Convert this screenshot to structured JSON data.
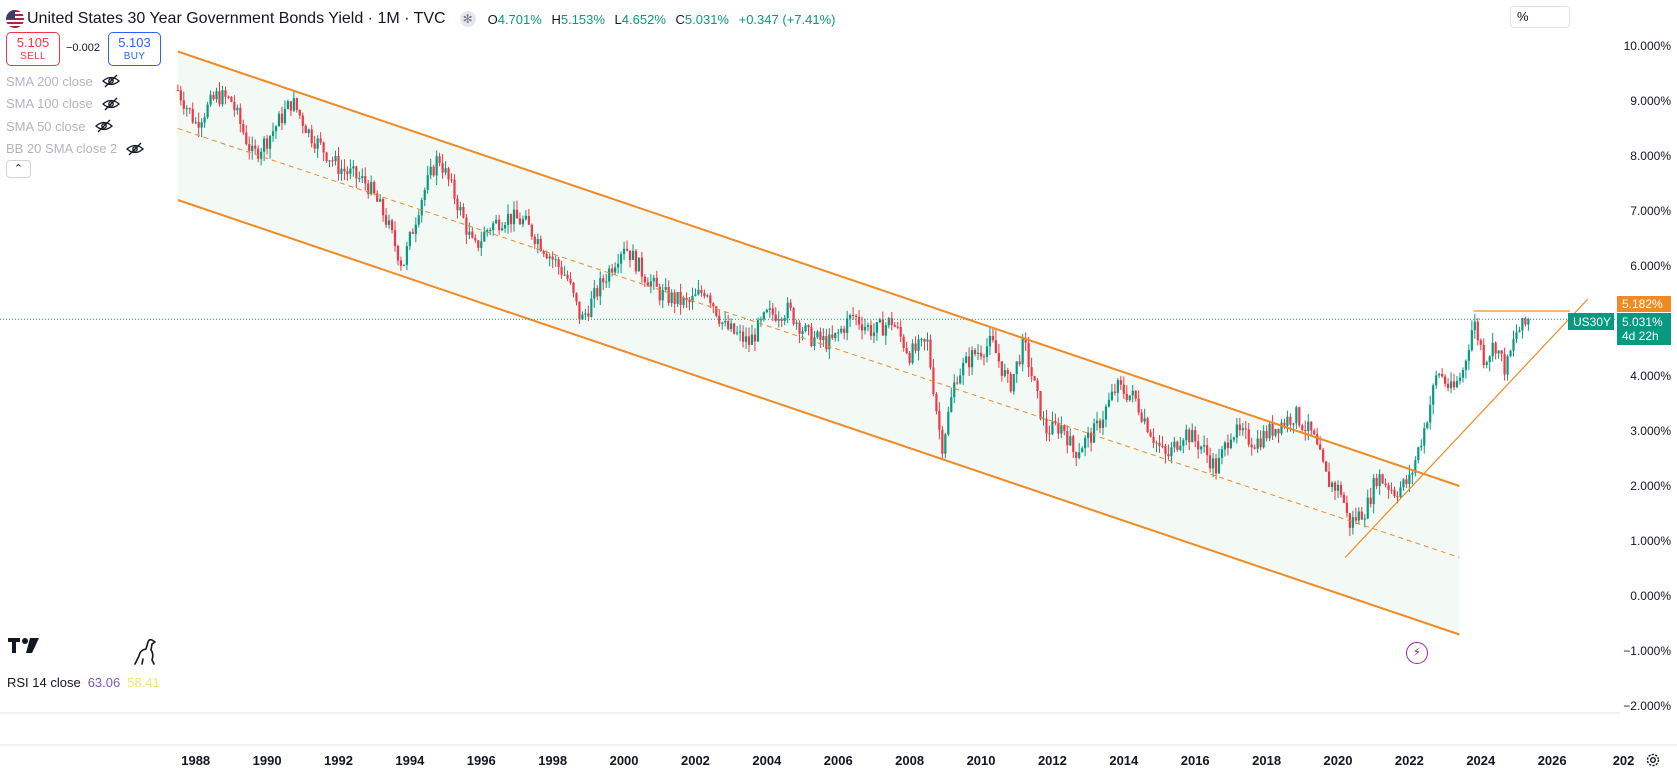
{
  "header": {
    "title": "United States 30 Year Government Bonds Yield · 1M · TVC",
    "ohlc": {
      "o_label": "O",
      "o_value": "4.701%",
      "h_label": "H",
      "h_value": "5.153%",
      "l_label": "L",
      "l_value": "4.652%",
      "c_label": "C",
      "c_value": "5.031%",
      "change": "+0.347 (+7.41%)"
    }
  },
  "trade": {
    "sell_price": "5.105",
    "sell_label": "SELL",
    "spread": "−0.002",
    "buy_price": "5.103",
    "buy_label": "BUY"
  },
  "indicators": [
    "SMA 200 close",
    "SMA 100 close",
    "SMA 50 close",
    "BB 20 SMA close 2"
  ],
  "scale_mode": "%",
  "rsi": {
    "label": "RSI 14 close",
    "value1": "63.06",
    "value2": "58.41"
  },
  "price_tags": {
    "high_level": "5.182%",
    "symbol": "US30Y",
    "last": "5.031%",
    "countdown": "4d 22h"
  },
  "colors": {
    "up": "#089981",
    "down": "#f23645",
    "channel": "#f08a24",
    "fill": "#f3faf6",
    "price_line": "#089981"
  },
  "chart_data": {
    "type": "candlestick",
    "title": "United States 30 Year Government Bonds Yield · 1M · TVC",
    "interval": "1M",
    "x_ticks": [
      "1988",
      "1990",
      "1992",
      "1994",
      "1996",
      "1998",
      "2000",
      "2002",
      "2004",
      "2006",
      "2008",
      "2010",
      "2012",
      "2014",
      "2016",
      "2018",
      "2020",
      "2022",
      "2024",
      "2026",
      "202"
    ],
    "y_ticks": [
      "10.000%",
      "9.000%",
      "8.000%",
      "7.000%",
      "6.000%",
      "5.000%",
      "4.000%",
      "3.000%",
      "2.000%",
      "1.000%",
      "0.000%",
      "−1.000%",
      "−2.000%"
    ],
    "y_unit": "%",
    "xlim": [
      1987.0,
      2027.9
    ],
    "ylim": [
      -2.0,
      10.0
    ],
    "last_value": 5.031,
    "monthly_closes": [
      {
        "x": 1987.5,
        "y": 9.2
      },
      {
        "x": 1988.0,
        "y": 8.6
      },
      {
        "x": 1988.6,
        "y": 9.1
      },
      {
        "x": 1989.0,
        "y": 9.0
      },
      {
        "x": 1989.6,
        "y": 8.0
      },
      {
        "x": 1990.0,
        "y": 8.3
      },
      {
        "x": 1990.7,
        "y": 9.0
      },
      {
        "x": 1991.2,
        "y": 8.4
      },
      {
        "x": 1992.0,
        "y": 7.8
      },
      {
        "x": 1992.8,
        "y": 7.5
      },
      {
        "x": 1993.3,
        "y": 6.9
      },
      {
        "x": 1993.8,
        "y": 6.0
      },
      {
        "x": 1994.3,
        "y": 7.2
      },
      {
        "x": 1994.8,
        "y": 8.0
      },
      {
        "x": 1995.3,
        "y": 7.2
      },
      {
        "x": 1995.8,
        "y": 6.3
      },
      {
        "x": 1996.2,
        "y": 6.7
      },
      {
        "x": 1996.7,
        "y": 6.9
      },
      {
        "x": 1997.2,
        "y": 6.8
      },
      {
        "x": 1997.8,
        "y": 6.3
      },
      {
        "x": 1998.4,
        "y": 5.8
      },
      {
        "x": 1998.8,
        "y": 5.0
      },
      {
        "x": 1999.3,
        "y": 5.6
      },
      {
        "x": 2000.0,
        "y": 6.4
      },
      {
        "x": 2000.5,
        "y": 5.9
      },
      {
        "x": 2001.0,
        "y": 5.5
      },
      {
        "x": 2001.8,
        "y": 5.3
      },
      {
        "x": 2002.3,
        "y": 5.6
      },
      {
        "x": 2002.8,
        "y": 4.9
      },
      {
        "x": 2003.5,
        "y": 4.6
      },
      {
        "x": 2004.0,
        "y": 5.1
      },
      {
        "x": 2004.6,
        "y": 5.2
      },
      {
        "x": 2005.2,
        "y": 4.7
      },
      {
        "x": 2005.8,
        "y": 4.6
      },
      {
        "x": 2006.4,
        "y": 5.1
      },
      {
        "x": 2007.0,
        "y": 4.8
      },
      {
        "x": 2007.5,
        "y": 5.0
      },
      {
        "x": 2008.0,
        "y": 4.4
      },
      {
        "x": 2008.5,
        "y": 4.6
      },
      {
        "x": 2008.9,
        "y": 2.7
      },
      {
        "x": 2009.3,
        "y": 4.0
      },
      {
        "x": 2009.8,
        "y": 4.4
      },
      {
        "x": 2010.3,
        "y": 4.6
      },
      {
        "x": 2010.8,
        "y": 3.8
      },
      {
        "x": 2011.2,
        "y": 4.6
      },
      {
        "x": 2011.8,
        "y": 3.0
      },
      {
        "x": 2012.3,
        "y": 3.1
      },
      {
        "x": 2012.6,
        "y": 2.6
      },
      {
        "x": 2013.2,
        "y": 3.0
      },
      {
        "x": 2013.8,
        "y": 3.8
      },
      {
        "x": 2014.3,
        "y": 3.6
      },
      {
        "x": 2014.9,
        "y": 2.8
      },
      {
        "x": 2015.2,
        "y": 2.5
      },
      {
        "x": 2015.7,
        "y": 3.0
      },
      {
        "x": 2016.2,
        "y": 2.7
      },
      {
        "x": 2016.6,
        "y": 2.3
      },
      {
        "x": 2017.0,
        "y": 3.0
      },
      {
        "x": 2017.7,
        "y": 2.8
      },
      {
        "x": 2018.3,
        "y": 3.1
      },
      {
        "x": 2018.8,
        "y": 3.3
      },
      {
        "x": 2019.3,
        "y": 2.9
      },
      {
        "x": 2019.7,
        "y": 2.1
      },
      {
        "x": 2020.1,
        "y": 1.9
      },
      {
        "x": 2020.3,
        "y": 1.3
      },
      {
        "x": 2020.8,
        "y": 1.6
      },
      {
        "x": 2021.1,
        "y": 2.2
      },
      {
        "x": 2021.6,
        "y": 1.9
      },
      {
        "x": 2022.0,
        "y": 2.1
      },
      {
        "x": 2022.4,
        "y": 3.0
      },
      {
        "x": 2022.8,
        "y": 4.1
      },
      {
        "x": 2023.2,
        "y": 3.7
      },
      {
        "x": 2023.5,
        "y": 4.1
      },
      {
        "x": 2023.8,
        "y": 5.0
      },
      {
        "x": 2024.1,
        "y": 4.3
      },
      {
        "x": 2024.4,
        "y": 4.6
      },
      {
        "x": 2024.7,
        "y": 4.1
      },
      {
        "x": 2025.0,
        "y": 4.8
      },
      {
        "x": 2025.4,
        "y": 5.0
      }
    ],
    "drawings": [
      {
        "name": "channel-upper",
        "points": [
          [
            1987.5,
            9.9
          ],
          [
            2023.4,
            2.0
          ]
        ]
      },
      {
        "name": "channel-mid",
        "style": "dashed",
        "points": [
          [
            1987.5,
            8.5
          ],
          [
            2023.4,
            0.7
          ]
        ]
      },
      {
        "name": "channel-lower",
        "points": [
          [
            1987.5,
            7.2
          ],
          [
            2023.4,
            -0.7
          ]
        ]
      },
      {
        "name": "support-trendline",
        "points": [
          [
            2020.2,
            0.7
          ],
          [
            2027.0,
            5.4
          ]
        ]
      },
      {
        "name": "horizontal-resistance",
        "points": [
          [
            2023.8,
            5.182
          ],
          [
            2026.5,
            5.182
          ]
        ]
      }
    ]
  }
}
